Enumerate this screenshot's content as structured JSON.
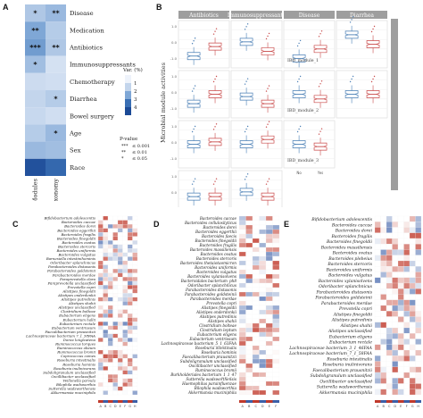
{
  "panelA": {
    "letter": "A",
    "rows": [
      "Disease",
      "Medication",
      "Antibiotics",
      "Immunosuppressants",
      "Chemotherapy",
      "Diarrhea",
      "Bowel surgery",
      "Age",
      "Sex",
      "Race"
    ],
    "cols": [
      "Modules",
      "Taxonomy"
    ],
    "values": [
      [
        1.3,
        1.6
      ],
      [
        2.0,
        1.2
      ],
      [
        2.2,
        1.3
      ],
      [
        1.5,
        0.6
      ],
      [
        0.8,
        0.7
      ],
      [
        1.0,
        1.2
      ],
      [
        0.9,
        0.7
      ],
      [
        1.2,
        1.6
      ],
      [
        1.6,
        1.5
      ],
      [
        3.8,
        3.2
      ]
    ],
    "stars": [
      [
        "*",
        "**"
      ],
      [
        "**",
        ""
      ],
      [
        "***",
        "**"
      ],
      [
        "*",
        ""
      ],
      [
        "",
        ""
      ],
      [
        "",
        "*"
      ],
      [
        "",
        ""
      ],
      [
        "",
        "*"
      ],
      [
        "",
        ""
      ],
      [
        "",
        ""
      ]
    ],
    "legend_title": "Var. (%)",
    "legend_ticks": [
      "1",
      "2",
      "3",
      "4"
    ],
    "legend_colors": [
      "#eef3fb",
      "#c3d5ec",
      "#7fa7d6",
      "#3a6fb4",
      "#1c4a96"
    ],
    "pvalue_title": "P-value",
    "pvalue_items": [
      {
        "mark": "***",
        "label": "≤ 0.001"
      },
      {
        "mark": "**",
        "label": "≤ 0.01"
      },
      {
        "mark": "*",
        "label": "≤ 0.05"
      }
    ]
  },
  "panelB": {
    "letter": "B",
    "strip_top": [
      "Antibiotics",
      "Immunosuppressants",
      "Disease",
      "Diarrhea"
    ],
    "strip_right": "Differential modules of ibd co-variates",
    "ylabel": "Microbial module activities",
    "module_labels": [
      "IBD_module_1",
      "IBD_module_2",
      "IBD_module_3"
    ],
    "xticks": [
      "No",
      "Yes"
    ],
    "yticks": [
      "1.0",
      "0.5",
      "0.0",
      "-0.5",
      "-1.0",
      "-1.5"
    ],
    "no_color": "#4a7fb5",
    "yes_color": "#c94a4a",
    "boxes": [
      [
        {
          "no": 0.25,
          "yes": 0.45
        },
        {
          "no": 0.55,
          "yes": 0.35
        },
        {
          "no": 0.2,
          "yes": 0.4
        },
        {
          "no": 0.7,
          "yes": 0.5
        }
      ],
      [
        {
          "no": 0.3,
          "yes": 0.5
        },
        {
          "no": 0.45,
          "yes": 0.3
        },
        {
          "no": 0.5,
          "yes": 0.4
        },
        {
          "no": 0.5,
          "yes": 0.5
        }
      ],
      [
        {
          "no": 0.5,
          "yes": 0.55
        },
        {
          "no": 0.5,
          "yes": 0.6
        },
        {
          "no": 0.5,
          "yes": 0.45
        },
        null
      ],
      [
        {
          "no": 0.45,
          "yes": 0.45
        },
        {
          "no": 0.55,
          "yes": 0.45
        },
        null,
        null
      ]
    ]
  },
  "panelC": {
    "letter": "C",
    "taxa": [
      "Bifidobacterium adolescentis",
      "Bacteroides caccae",
      "Bacteroides dorei",
      "Bacteroides eggerthii",
      "Bacteroides fragilis",
      "Bacteroides finegoldii",
      "Bacteroides ovatus",
      "Bacteroides stercoris",
      "Bacteroides uniformis",
      "Bacteroides vulgatus",
      "Barnesiella intestinihominis",
      "Odoribacter splanchnicus",
      "Parabacteroides distasonis",
      "Parabacteroides goldsteinii",
      "Parabacteroides merdae",
      "Paraprevotella clara",
      "Paraprevotella unclassified",
      "Prevotella copri",
      "Alistipes finegoldii",
      "Alistipes onderdonkii",
      "Alistipes putredinis",
      "Alistipes shahii",
      "Alistipes unclassified",
      "Clostridium bolteae",
      "Eubacterium eligens",
      "Eubacterium hallii",
      "Eubacterium rectale",
      "Eubacterium ventriosum",
      "Faecalibacterium prausnitzii",
      "Lachnospiraceae bacterium 7_1_58FAA",
      "Dorea longicatena",
      "Ruminococcus torques",
      "Ruminococcus obeum",
      "Ruminococcus bromii",
      "Coprococcus comes",
      "Roseburia intestinalis",
      "Roseburia hominis",
      "Roseburia inulinivorans",
      "Subdoligranulum unclassified",
      "Oscillibacter unclassified",
      "Veillonella parvula",
      "Bilophila wadsworthia",
      "Sutterella wadsworthensis",
      "Akkermansia muciniphila"
    ],
    "footer": "ABCDEFGH"
  },
  "panelD": {
    "letter": "D",
    "taxa": [
      "Bacteroides caccae",
      "Bacteroides cellulosilyticus",
      "Bacteroides dorei",
      "Bacteroides eggerthii",
      "Bacteroides faecis",
      "Bacteroides finegoldii",
      "Bacteroides fragilis",
      "Bacteroides massiliensis",
      "Bacteroides ovatus",
      "Bacteroides stercoris",
      "Bacteroides thetaiotaomicron",
      "Bacteroides uniformis",
      "Bacteroides vulgatus",
      "Bacteroides xylanisolvens",
      "Bacteroidales bacterium_ph8",
      "Odoribacter splanchnicus",
      "Parabacteroides distasonis",
      "Parabacteroides goldsteinii",
      "Parabacteroides merdae",
      "Prevotella copri",
      "Alistipes finegoldii",
      "Alistipes onderdonkii",
      "Alistipes putredinis",
      "Alistipes shahii",
      "Clostridium bolteae",
      "Clostridium leptum",
      "Eubacterium eligens",
      "Eubacterium ventriosum",
      "Lachnospiraceae bacterium_5_1_63FAA",
      "Roseburia intestinalis",
      "Roseburia hominis",
      "Faecalibacterium prausnitzii",
      "Subdoligranulum unclassified",
      "Oscillibacter unclassified",
      "Ruminococcus bromii",
      "Burkholderiales bacterium_1_1_47",
      "Sutterella wadsworthensis",
      "Haemophilus parainfluenzae",
      "Bilophila wadsworthia",
      "Akkermansia muciniphila"
    ],
    "footer": "ABCDEF"
  },
  "panelE": {
    "letter": "E",
    "taxa": [
      "Bifidobacterium adolescentis",
      "Bacteroides caccae",
      "Bacteroides dorei",
      "Bacteroides fragilis",
      "Bacteroides finegoldii",
      "Bacteroides massiliensis",
      "Bacteroides ovatus",
      "Bacteroides plebeius",
      "Bacteroides stercoris",
      "Bacteroides uniformis",
      "Bacteroides vulgatus",
      "Bacteroides xylanisolvens",
      "Odoribacter splanchnicus",
      "Parabacteroides distasonis",
      "Parabacteroides goldsteinii",
      "Parabacteroides merdae",
      "Prevotella copri",
      "Alistipes finegoldii",
      "Alistipes putredinis",
      "Alistipes shahii",
      "Alistipes unclassified",
      "Eubacterium eligens",
      "Eubacterium rectale",
      "Lachnospiraceae bacterium_3_1_46FAA",
      "Lachnospiraceae bacterium_7_1_58FAA",
      "Roseburia intestinalis",
      "Roseburia inulinivorans",
      "Faecalibacterium prausnitzii",
      "Subdoligranulum unclassified",
      "Oscillibacter unclassified",
      "Sutterella wadsworthensis",
      "Akkermansia muciniphila"
    ],
    "footer": "ABCDEFGH"
  }
}
